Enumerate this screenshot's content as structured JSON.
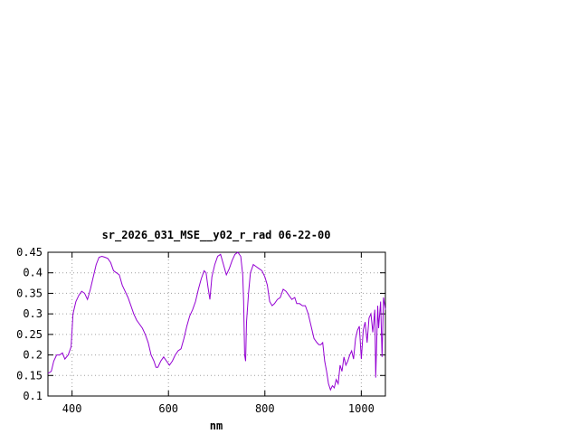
{
  "chart_data": {
    "type": "line",
    "title": "sr_2026_031_MSE__y02_r_rad 06-22-00",
    "xlabel": "nm",
    "ylabel": "",
    "xlim": [
      350,
      1050
    ],
    "ylim": [
      0.1,
      0.45
    ],
    "grid": true,
    "x_ticks": [
      400,
      600,
      800,
      1000
    ],
    "y_ticks": [
      0.1,
      0.15,
      0.2,
      0.25,
      0.3,
      0.35,
      0.4,
      0.45
    ],
    "x_tick_labels": [
      "400",
      "600",
      "800",
      "1000"
    ],
    "y_tick_labels": [
      "0.1",
      "0.15",
      "0.2",
      "0.25",
      "0.3",
      "0.35",
      "0.4",
      "0.45"
    ],
    "series": [
      {
        "color": "#9400d3",
        "points": [
          [
            350,
            0.155
          ],
          [
            357,
            0.16
          ],
          [
            362,
            0.185
          ],
          [
            368,
            0.2
          ],
          [
            374,
            0.2
          ],
          [
            380,
            0.205
          ],
          [
            385,
            0.19
          ],
          [
            392,
            0.2
          ],
          [
            398,
            0.22
          ],
          [
            402,
            0.3
          ],
          [
            408,
            0.33
          ],
          [
            414,
            0.345
          ],
          [
            420,
            0.355
          ],
          [
            426,
            0.35
          ],
          [
            432,
            0.335
          ],
          [
            438,
            0.36
          ],
          [
            444,
            0.39
          ],
          [
            450,
            0.42
          ],
          [
            456,
            0.438
          ],
          [
            462,
            0.44
          ],
          [
            468,
            0.438
          ],
          [
            474,
            0.435
          ],
          [
            480,
            0.425
          ],
          [
            486,
            0.405
          ],
          [
            492,
            0.4
          ],
          [
            498,
            0.395
          ],
          [
            504,
            0.37
          ],
          [
            510,
            0.355
          ],
          [
            516,
            0.34
          ],
          [
            522,
            0.32
          ],
          [
            528,
            0.3
          ],
          [
            534,
            0.285
          ],
          [
            540,
            0.275
          ],
          [
            546,
            0.265
          ],
          [
            552,
            0.25
          ],
          [
            558,
            0.23
          ],
          [
            564,
            0.2
          ],
          [
            570,
            0.185
          ],
          [
            574,
            0.17
          ],
          [
            578,
            0.17
          ],
          [
            584,
            0.185
          ],
          [
            590,
            0.195
          ],
          [
            596,
            0.185
          ],
          [
            602,
            0.175
          ],
          [
            608,
            0.185
          ],
          [
            614,
            0.2
          ],
          [
            620,
            0.21
          ],
          [
            626,
            0.215
          ],
          [
            632,
            0.24
          ],
          [
            638,
            0.27
          ],
          [
            644,
            0.295
          ],
          [
            650,
            0.31
          ],
          [
            656,
            0.33
          ],
          [
            662,
            0.36
          ],
          [
            668,
            0.385
          ],
          [
            674,
            0.405
          ],
          [
            678,
            0.4
          ],
          [
            682,
            0.365
          ],
          [
            686,
            0.335
          ],
          [
            690,
            0.39
          ],
          [
            696,
            0.42
          ],
          [
            702,
            0.44
          ],
          [
            708,
            0.445
          ],
          [
            714,
            0.42
          ],
          [
            720,
            0.395
          ],
          [
            726,
            0.41
          ],
          [
            732,
            0.43
          ],
          [
            738,
            0.445
          ],
          [
            744,
            0.45
          ],
          [
            750,
            0.44
          ],
          [
            754,
            0.395
          ],
          [
            756,
            0.33
          ],
          [
            758,
            0.2
          ],
          [
            760,
            0.185
          ],
          [
            762,
            0.28
          ],
          [
            766,
            0.35
          ],
          [
            770,
            0.4
          ],
          [
            776,
            0.42
          ],
          [
            782,
            0.415
          ],
          [
            788,
            0.41
          ],
          [
            794,
            0.405
          ],
          [
            800,
            0.39
          ],
          [
            805,
            0.37
          ],
          [
            810,
            0.33
          ],
          [
            815,
            0.32
          ],
          [
            820,
            0.325
          ],
          [
            826,
            0.335
          ],
          [
            832,
            0.34
          ],
          [
            838,
            0.36
          ],
          [
            844,
            0.355
          ],
          [
            850,
            0.345
          ],
          [
            856,
            0.335
          ],
          [
            862,
            0.34
          ],
          [
            866,
            0.325
          ],
          [
            872,
            0.325
          ],
          [
            878,
            0.32
          ],
          [
            884,
            0.32
          ],
          [
            890,
            0.3
          ],
          [
            896,
            0.27
          ],
          [
            902,
            0.24
          ],
          [
            908,
            0.23
          ],
          [
            912,
            0.225
          ],
          [
            916,
            0.225
          ],
          [
            920,
            0.23
          ],
          [
            924,
            0.185
          ],
          [
            928,
            0.16
          ],
          [
            932,
            0.13
          ],
          [
            936,
            0.115
          ],
          [
            940,
            0.125
          ],
          [
            944,
            0.12
          ],
          [
            948,
            0.14
          ],
          [
            952,
            0.13
          ],
          [
            956,
            0.175
          ],
          [
            960,
            0.16
          ],
          [
            964,
            0.195
          ],
          [
            968,
            0.175
          ],
          [
            972,
            0.185
          ],
          [
            976,
            0.2
          ],
          [
            980,
            0.21
          ],
          [
            984,
            0.19
          ],
          [
            988,
            0.24
          ],
          [
            992,
            0.26
          ],
          [
            996,
            0.27
          ],
          [
            1000,
            0.19
          ],
          [
            1004,
            0.26
          ],
          [
            1008,
            0.28
          ],
          [
            1012,
            0.23
          ],
          [
            1016,
            0.29
          ],
          [
            1020,
            0.3
          ],
          [
            1024,
            0.255
          ],
          [
            1028,
            0.31
          ],
          [
            1030,
            0.145
          ],
          [
            1034,
            0.32
          ],
          [
            1036,
            0.265
          ],
          [
            1040,
            0.33
          ],
          [
            1043,
            0.195
          ],
          [
            1046,
            0.34
          ],
          [
            1050,
            0.31
          ]
        ]
      }
    ]
  }
}
